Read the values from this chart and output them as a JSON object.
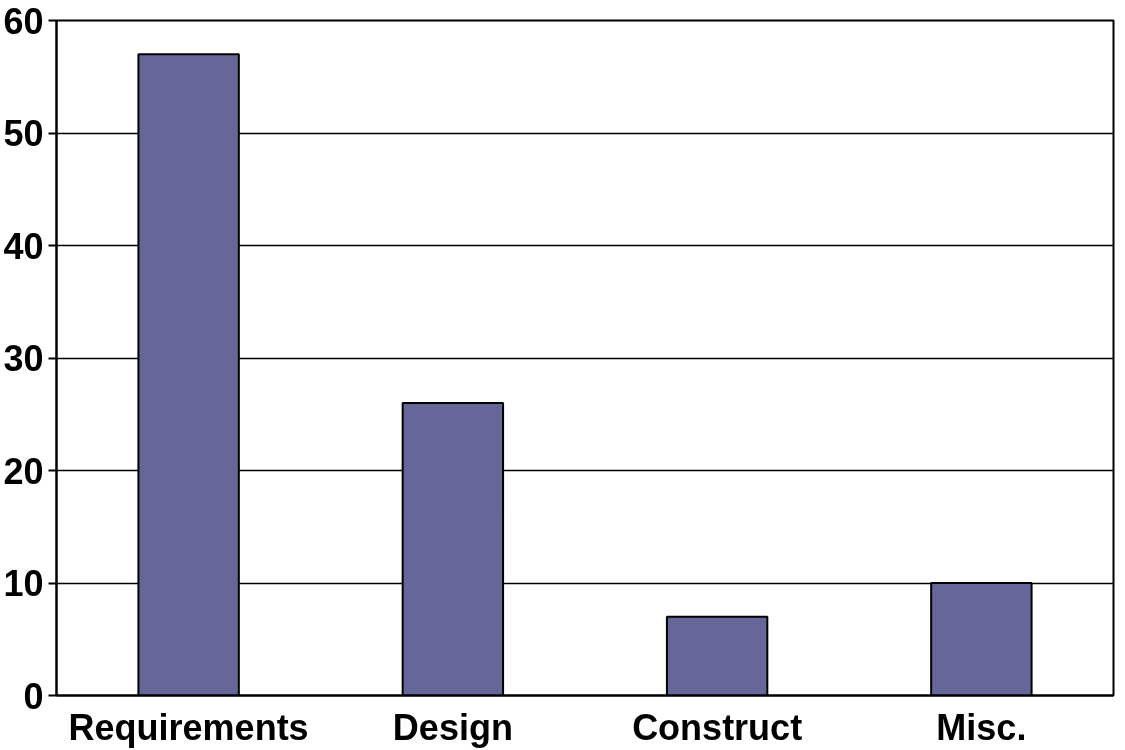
{
  "chart_data": {
    "type": "bar",
    "categories": [
      "Requirements",
      "Design",
      "Construct",
      "Misc."
    ],
    "values": [
      57,
      26,
      7,
      10
    ],
    "color": "#666699",
    "ylim": [
      0,
      60
    ],
    "yticks": [
      0,
      10,
      20,
      30,
      40,
      50,
      60
    ],
    "grid": "y"
  }
}
